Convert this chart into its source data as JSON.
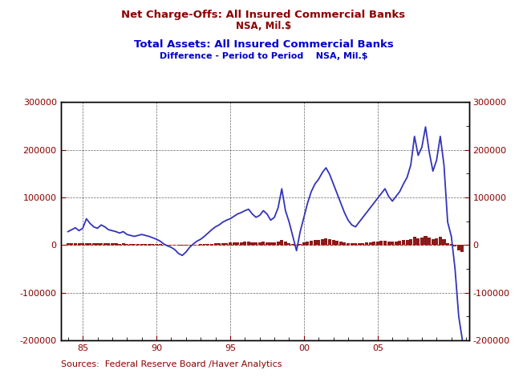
{
  "title1": "Net Charge-Offs: All Insured Commercial Banks",
  "title2": "NSA, Mil.$",
  "title3": "Total Assets: All Insured Commercial Banks",
  "title4": "Difference - Period to Period    NSA, Mil.$",
  "source": "Sources:  Federal Reserve Board /Haver Analytics",
  "title1_color": "#8B0000",
  "title2_color": "#8B0000",
  "title3_color": "#0000CC",
  "title4_color": "#0000CC",
  "line_color": "#3333BB",
  "bar_color": "#8B1A1A",
  "dashed_line_color": "#CC0000",
  "background_color": "#FFFFFF",
  "axis_label_color": "#8B0000",
  "ylim": [
    -200000,
    300000
  ],
  "yticks": [
    -200000,
    -100000,
    0,
    100000,
    200000,
    300000
  ],
  "xticks": [
    1985,
    1990,
    1995,
    2000,
    2005
  ],
  "xtick_labels": [
    "85",
    "90",
    "95",
    "00",
    "05"
  ],
  "figsize": [
    6.57,
    4.71
  ],
  "dpi": 100,
  "line_vals": [
    28000,
    32000,
    36000,
    30000,
    35000,
    55000,
    45000,
    38000,
    35000,
    42000,
    38000,
    32000,
    30000,
    28000,
    25000,
    28000,
    22000,
    20000,
    18000,
    20000,
    22000,
    20000,
    18000,
    15000,
    12000,
    8000,
    2000,
    -2000,
    -5000,
    -10000,
    -18000,
    -22000,
    -15000,
    -5000,
    2000,
    8000,
    12000,
    18000,
    25000,
    32000,
    38000,
    42000,
    48000,
    52000,
    55000,
    60000,
    65000,
    68000,
    72000,
    75000,
    65000,
    58000,
    62000,
    72000,
    65000,
    52000,
    58000,
    78000,
    118000,
    72000,
    48000,
    18000,
    -12000,
    28000,
    58000,
    88000,
    112000,
    128000,
    138000,
    152000,
    162000,
    148000,
    128000,
    108000,
    88000,
    68000,
    52000,
    42000,
    38000,
    48000,
    58000,
    68000,
    78000,
    88000,
    98000,
    108000,
    118000,
    102000,
    92000,
    102000,
    112000,
    128000,
    142000,
    168000,
    228000,
    188000,
    205000,
    248000,
    195000,
    155000,
    178000,
    228000,
    168000,
    48000,
    18000,
    -50000,
    -150000,
    -200000
  ],
  "bar_vals": [
    3500,
    3000,
    3200,
    3800,
    4000,
    3500,
    3200,
    4000,
    4500,
    3800,
    3500,
    4200,
    3800,
    3200,
    2800,
    3200,
    2800,
    2500,
    2200,
    2600,
    2800,
    2500,
    2200,
    1800,
    1500,
    1200,
    800,
    600,
    200,
    -400,
    -800,
    -1200,
    -600,
    0,
    500,
    900,
    1200,
    1800,
    2200,
    2800,
    3200,
    3600,
    4000,
    4400,
    4800,
    5200,
    5600,
    6000,
    6400,
    6800,
    6000,
    5600,
    5800,
    6500,
    5800,
    4800,
    5200,
    7000,
    10000,
    7000,
    4500,
    1800,
    -600,
    2500,
    4800,
    7200,
    9000,
    10500,
    11200,
    12200,
    13000,
    12000,
    10500,
    9000,
    7200,
    5500,
    4200,
    3400,
    3000,
    3800,
    4500,
    5200,
    6000,
    6800,
    7500,
    8200,
    9000,
    7800,
    7000,
    7800,
    8700,
    9800,
    10800,
    12800,
    17400,
    14400,
    15800,
    19000,
    14800,
    11800,
    13500,
    17400,
    12800,
    3800,
    1400,
    -3800,
    -11400,
    -15200
  ],
  "quarters": [
    1984.0,
    1984.25,
    1984.5,
    1984.75,
    1985.0,
    1985.25,
    1985.5,
    1985.75,
    1986.0,
    1986.25,
    1986.5,
    1986.75,
    1987.0,
    1987.25,
    1987.5,
    1987.75,
    1988.0,
    1988.25,
    1988.5,
    1988.75,
    1989.0,
    1989.25,
    1989.5,
    1989.75,
    1990.0,
    1990.25,
    1990.5,
    1990.75,
    1991.0,
    1991.25,
    1991.5,
    1991.75,
    1992.0,
    1992.25,
    1992.5,
    1992.75,
    1993.0,
    1993.25,
    1993.5,
    1993.75,
    1994.0,
    1994.25,
    1994.5,
    1994.75,
    1995.0,
    1995.25,
    1995.5,
    1995.75,
    1996.0,
    1996.25,
    1996.5,
    1996.75,
    1997.0,
    1997.25,
    1997.5,
    1997.75,
    1998.0,
    1998.25,
    1998.5,
    1998.75,
    1999.0,
    1999.25,
    1999.5,
    1999.75,
    2000.0,
    2000.25,
    2000.5,
    2000.75,
    2001.0,
    2001.25,
    2001.5,
    2001.75,
    2002.0,
    2002.25,
    2002.5,
    2002.75,
    2003.0,
    2003.25,
    2003.5,
    2003.75,
    2004.0,
    2004.25,
    2004.5,
    2004.75,
    2005.0,
    2005.25,
    2005.5,
    2005.75,
    2006.0,
    2006.25,
    2006.5,
    2006.75,
    2007.0,
    2007.25,
    2007.5,
    2007.75,
    2008.0,
    2008.25,
    2008.5,
    2008.75,
    2009.0,
    2009.25,
    2009.5,
    2009.75,
    2010.0,
    2010.25,
    2010.5,
    2010.75
  ]
}
